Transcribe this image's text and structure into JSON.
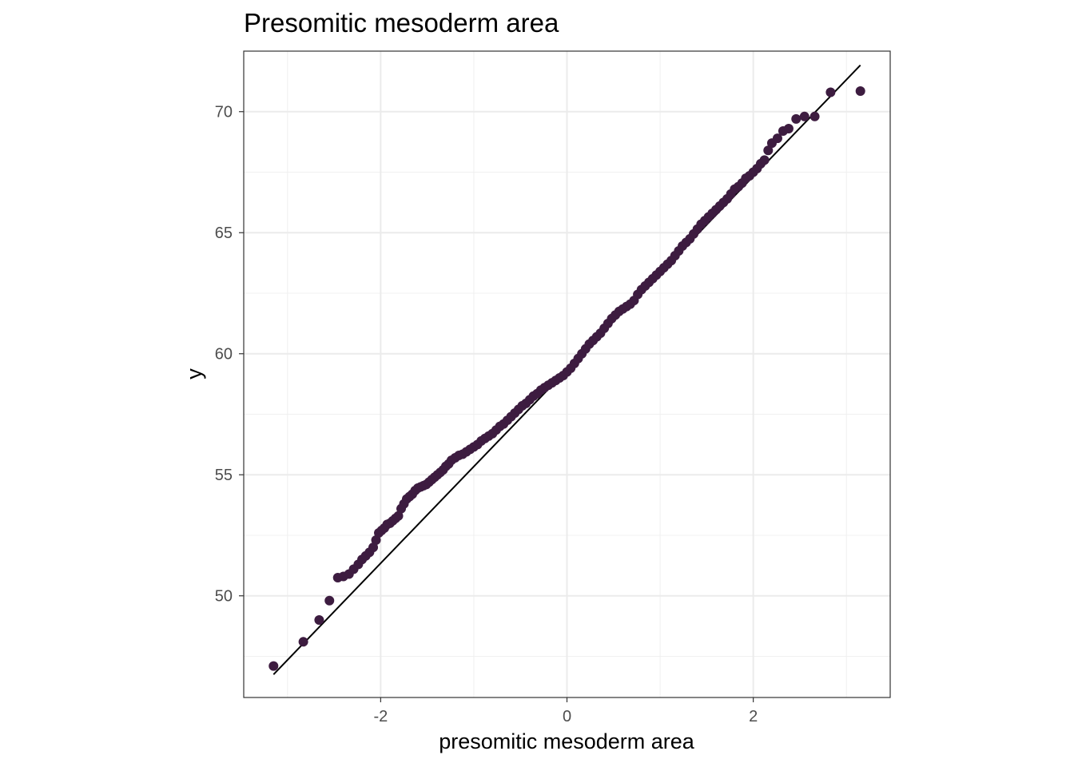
{
  "chart_data": {
    "type": "scatter",
    "subtype": "qq-plot",
    "title": "Presomitic mesoderm area",
    "xlabel": "presomitic mesoderm area",
    "ylabel": "y",
    "xlim": [
      -3.47,
      3.47
    ],
    "ylim": [
      45.8,
      72.5
    ],
    "x_ticks": [
      -2,
      0,
      2
    ],
    "x_tick_labels": [
      "-2",
      "0",
      "2"
    ],
    "y_ticks": [
      50,
      55,
      60,
      65,
      70
    ],
    "y_tick_labels": [
      "50",
      "55",
      "60",
      "65",
      "70"
    ],
    "grid": true,
    "legend": "none",
    "point_color": "#3d1c40",
    "line_color": "#000000",
    "reference_line": {
      "x": [
        -3.15,
        3.15
      ],
      "y": [
        46.75,
        71.92
      ]
    },
    "series": [
      {
        "x": [
          -3.15,
          -2.83,
          -2.66,
          -2.55,
          -2.46,
          -2.4,
          -2.34,
          -2.29,
          -2.24,
          -2.2,
          -2.16,
          -2.12,
          -2.08,
          -2.05,
          -2.02,
          -1.99,
          -1.96,
          -1.93,
          -1.9,
          -1.87,
          -1.84,
          -1.81,
          -1.78,
          -1.75,
          -1.72,
          -1.69,
          -1.66,
          -1.63,
          -1.6,
          -1.57,
          -1.54,
          -1.51,
          -1.48,
          -1.45,
          -1.42,
          -1.39,
          -1.36,
          -1.33,
          -1.3,
          -1.27,
          -1.24,
          -1.2,
          -1.16,
          -1.12,
          -1.08,
          -1.04,
          -1.0,
          -0.96,
          -0.92,
          -0.88,
          -0.84,
          -0.8,
          -0.76,
          -0.72,
          -0.68,
          -0.64,
          -0.6,
          -0.56,
          -0.52,
          -0.48,
          -0.44,
          -0.4,
          -0.36,
          -0.32,
          -0.28,
          -0.24,
          -0.2,
          -0.16,
          -0.12,
          -0.08,
          -0.04,
          0.0,
          0.04,
          0.08,
          0.12,
          0.16,
          0.2,
          0.24,
          0.28,
          0.32,
          0.36,
          0.4,
          0.44,
          0.48,
          0.52,
          0.56,
          0.6,
          0.64,
          0.68,
          0.72,
          0.76,
          0.8,
          0.84,
          0.88,
          0.92,
          0.96,
          1.0,
          1.04,
          1.08,
          1.12,
          1.16,
          1.2,
          1.24,
          1.28,
          1.32,
          1.36,
          1.4,
          1.44,
          1.48,
          1.52,
          1.56,
          1.6,
          1.64,
          1.68,
          1.72,
          1.76,
          1.8,
          1.84,
          1.88,
          1.92,
          1.96,
          2.0,
          2.04,
          2.08,
          2.12,
          2.16,
          2.2,
          2.26,
          2.32,
          2.38,
          2.46,
          2.55,
          2.66,
          2.83,
          3.15
        ],
        "y": [
          47.1,
          48.1,
          49.0,
          49.8,
          50.75,
          50.8,
          50.9,
          51.1,
          51.3,
          51.5,
          51.65,
          51.8,
          52.0,
          52.3,
          52.6,
          52.7,
          52.8,
          52.95,
          53.0,
          53.1,
          53.2,
          53.3,
          53.6,
          53.8,
          54.0,
          54.1,
          54.2,
          54.35,
          54.45,
          54.5,
          54.55,
          54.6,
          54.7,
          54.8,
          54.9,
          55.0,
          55.1,
          55.2,
          55.35,
          55.45,
          55.6,
          55.7,
          55.8,
          55.85,
          55.95,
          56.05,
          56.15,
          56.25,
          56.4,
          56.5,
          56.6,
          56.7,
          56.85,
          57.0,
          57.1,
          57.25,
          57.4,
          57.55,
          57.7,
          57.85,
          57.95,
          58.1,
          58.25,
          58.35,
          58.5,
          58.6,
          58.7,
          58.8,
          58.9,
          59.0,
          59.1,
          59.25,
          59.4,
          59.6,
          59.8,
          60.0,
          60.2,
          60.4,
          60.55,
          60.7,
          60.85,
          61.05,
          61.25,
          61.45,
          61.6,
          61.75,
          61.85,
          61.95,
          62.05,
          62.2,
          62.45,
          62.65,
          62.8,
          62.95,
          63.1,
          63.25,
          63.4,
          63.55,
          63.7,
          63.85,
          64.05,
          64.25,
          64.45,
          64.6,
          64.75,
          64.95,
          65.15,
          65.35,
          65.5,
          65.65,
          65.8,
          65.95,
          66.1,
          66.25,
          66.4,
          66.6,
          66.8,
          66.9,
          67.05,
          67.25,
          67.35,
          67.5,
          67.65,
          67.85,
          68.0,
          68.4,
          68.7,
          68.9,
          69.2,
          69.3,
          69.7,
          69.8,
          69.8,
          70.8,
          70.85
        ]
      }
    ]
  }
}
